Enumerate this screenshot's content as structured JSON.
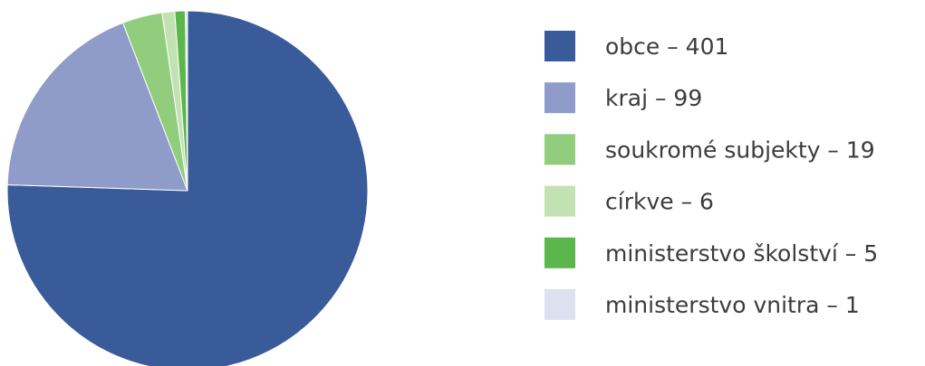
{
  "chart_data": {
    "type": "pie",
    "title": "",
    "legend_position": "right",
    "start_angle_deg": 0,
    "direction": "clockwise",
    "slices": [
      {
        "key": "obce",
        "label": "obce – 401",
        "value": 401,
        "color": "#3a5b9a"
      },
      {
        "key": "kraj",
        "label": "kraj – 99",
        "value": 99,
        "color": "#8f9cca"
      },
      {
        "key": "soukrome-subjekty",
        "label": "soukromé subjekty – 19",
        "value": 19,
        "color": "#92cc7d"
      },
      {
        "key": "cirkve",
        "label": "církve – 6",
        "value": 6,
        "color": "#c2e2b4"
      },
      {
        "key": "ministerstvo-skolstvi",
        "label": "ministerstvo školství – 5",
        "value": 5,
        "color": "#5bb64c"
      },
      {
        "key": "ministerstvo-vnitra",
        "label": "ministerstvo vnitra – 1",
        "value": 1,
        "color": "#dde2f0"
      }
    ]
  }
}
